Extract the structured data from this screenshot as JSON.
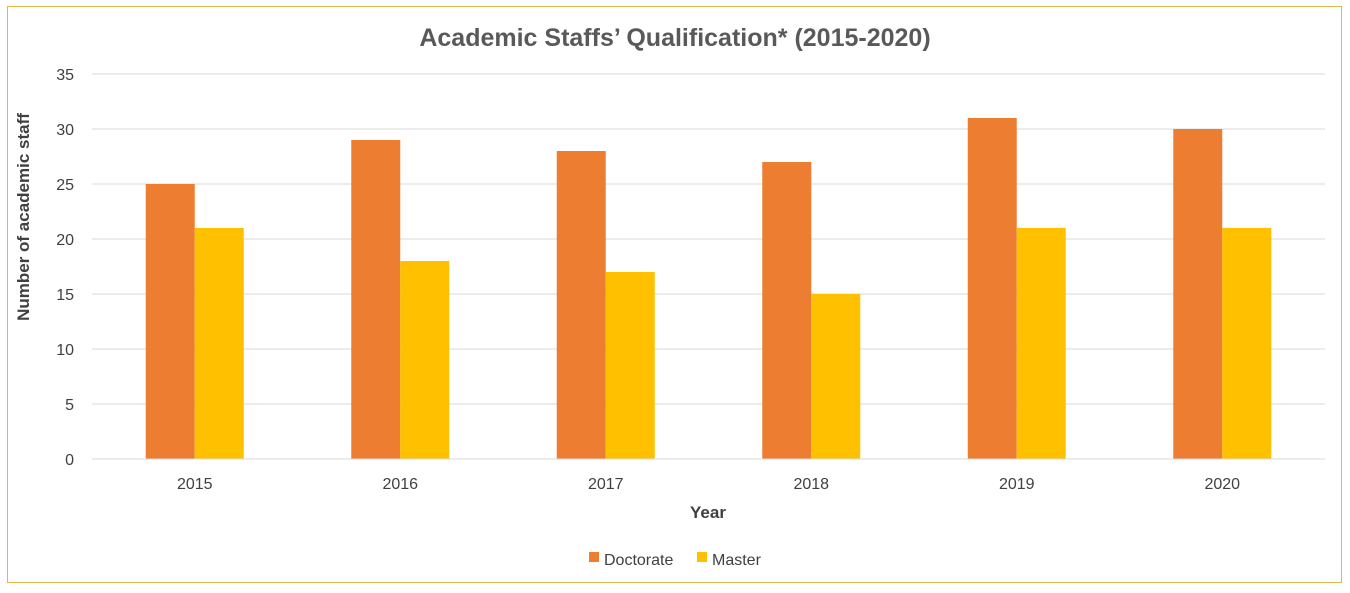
{
  "chart_data": {
    "type": "bar",
    "title": "Academic Staffs’ Qualification* (2015-2020)",
    "xlabel": "Year",
    "ylabel": "Number of academic staff",
    "categories": [
      "2015",
      "2016",
      "2017",
      "2018",
      "2019",
      "2020"
    ],
    "series": [
      {
        "name": "Doctorate",
        "color": "#ed7d31",
        "values": [
          25,
          29,
          28,
          27,
          31,
          30
        ]
      },
      {
        "name": "Master",
        "color": "#ffc000",
        "values": [
          21,
          18,
          17,
          15,
          21,
          21
        ]
      }
    ],
    "ylim": [
      0,
      35
    ],
    "yticks": [
      "0",
      "5",
      "10",
      "15",
      "20",
      "25",
      "30",
      "35"
    ],
    "grid": true,
    "legend_position": "bottom"
  }
}
